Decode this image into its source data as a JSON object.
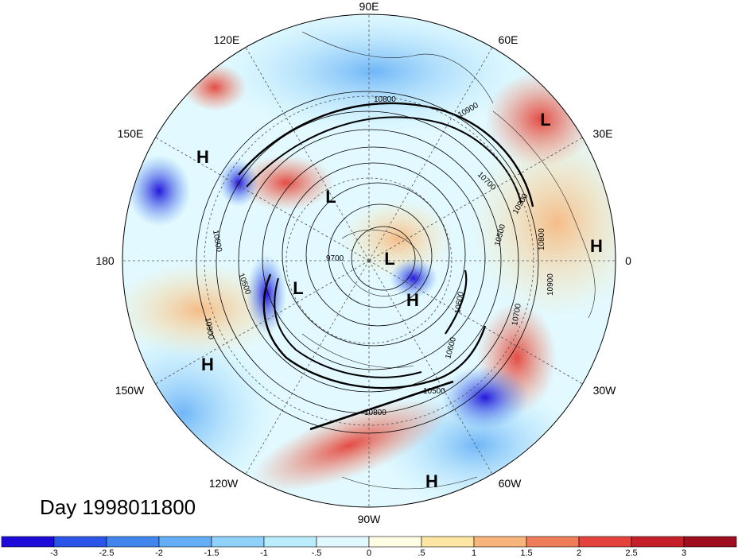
{
  "title": "Day 1998011800",
  "longitude_labels": [
    "90E",
    "60E",
    "30E",
    "0",
    "30W",
    "60W",
    "90W",
    "120W",
    "150W",
    "180",
    "150E",
    "120E"
  ],
  "pressure_centers": [
    {
      "type": "L",
      "lat": 50,
      "lon": 40
    },
    {
      "type": "H",
      "lat": 35,
      "lon": 150
    },
    {
      "type": "L",
      "lat": 62,
      "lon": 125
    },
    {
      "type": "H",
      "lat": 35,
      "lon": -3
    },
    {
      "type": "L",
      "lat": 85,
      "lon": 10
    },
    {
      "type": "L",
      "lat": 68,
      "lon": -160
    },
    {
      "type": "H",
      "lat": 78,
      "lon": -45
    },
    {
      "type": "H",
      "lat": 30,
      "lon": -145
    },
    {
      "type": "H",
      "lat": 20,
      "lon": -75
    }
  ],
  "contour_labels": [
    "10800",
    "10900",
    "10700",
    "10500",
    "10600",
    "10900",
    "10800",
    "10500",
    "10900",
    "10600",
    "10500",
    "10700",
    "9700",
    "10800",
    "10800",
    "10900"
  ],
  "colorbar": {
    "ticks": [
      "-3",
      "-2.5",
      "-2",
      "-1.5",
      "-1",
      "-.5",
      "0",
      ".5",
      "1",
      "1.5",
      "2",
      "2.5",
      "3"
    ],
    "colors": [
      "#1c0bd9",
      "#2a55e8",
      "#4186ef",
      "#63aef6",
      "#8fd1fa",
      "#b9ecfd",
      "#e2f9ff",
      "#fffde3",
      "#fde6a4",
      "#f7b57b",
      "#ef7d59",
      "#e3433c",
      "#c51f2a",
      "#9e0e1f"
    ]
  }
}
